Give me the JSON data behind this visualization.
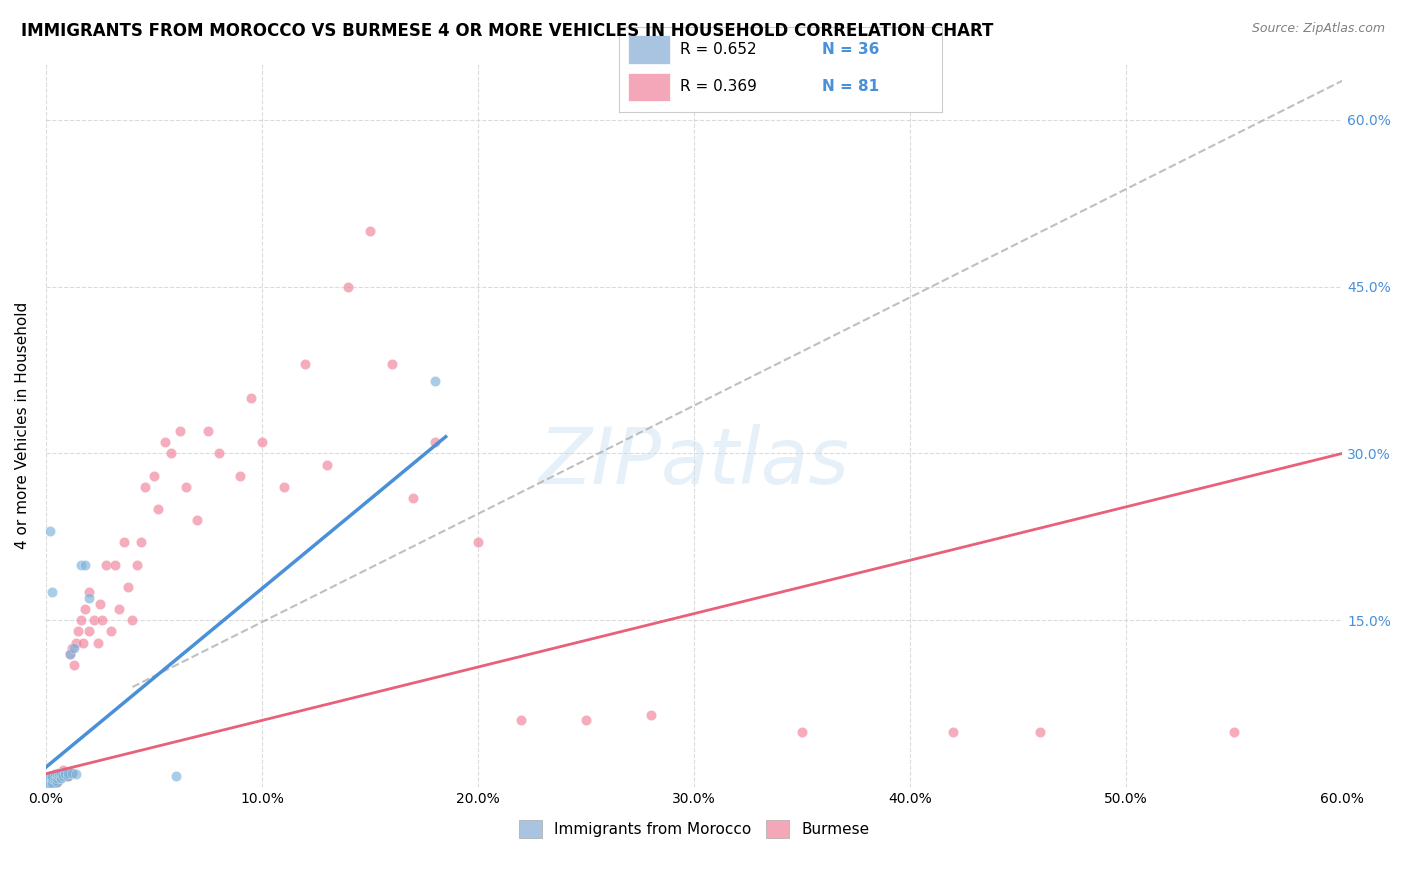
{
  "title": "IMMIGRANTS FROM MOROCCO VS BURMESE 4 OR MORE VEHICLES IN HOUSEHOLD CORRELATION CHART",
  "source": "Source: ZipAtlas.com",
  "ylabel": "4 or more Vehicles in Household",
  "xlim": [
    0.0,
    0.6
  ],
  "ylim": [
    0.0,
    0.65
  ],
  "morocco_color": "#a8c4e0",
  "burmese_color": "#f4a7b9",
  "morocco_scatter_color": "#7bb3d9",
  "burmese_scatter_color": "#f08098",
  "trendline_morocco_color": "#4a90d9",
  "trendline_burmese_color": "#e8607a",
  "diagonal_color": "#b0b0b0",
  "R_morocco": 0.652,
  "N_morocco": 36,
  "R_burmese": 0.369,
  "N_burmese": 81,
  "morocco_x": [
    0.001,
    0.001,
    0.001,
    0.001,
    0.002,
    0.002,
    0.002,
    0.002,
    0.003,
    0.003,
    0.003,
    0.003,
    0.004,
    0.004,
    0.005,
    0.005,
    0.005,
    0.006,
    0.006,
    0.007,
    0.007,
    0.008,
    0.009,
    0.01,
    0.01,
    0.011,
    0.012,
    0.013,
    0.014,
    0.016,
    0.018,
    0.02,
    0.002,
    0.003,
    0.06,
    0.18
  ],
  "morocco_y": [
    0.002,
    0.004,
    0.006,
    0.008,
    0.002,
    0.004,
    0.008,
    0.01,
    0.003,
    0.005,
    0.008,
    0.01,
    0.006,
    0.012,
    0.005,
    0.008,
    0.012,
    0.01,
    0.013,
    0.008,
    0.013,
    0.01,
    0.012,
    0.01,
    0.013,
    0.12,
    0.013,
    0.125,
    0.012,
    0.2,
    0.2,
    0.17,
    0.23,
    0.175,
    0.01,
    0.365
  ],
  "burmese_x": [
    0.001,
    0.001,
    0.001,
    0.002,
    0.002,
    0.002,
    0.002,
    0.003,
    0.003,
    0.003,
    0.003,
    0.004,
    0.004,
    0.004,
    0.005,
    0.005,
    0.005,
    0.006,
    0.006,
    0.007,
    0.007,
    0.008,
    0.008,
    0.008,
    0.009,
    0.009,
    0.01,
    0.01,
    0.011,
    0.012,
    0.012,
    0.013,
    0.014,
    0.015,
    0.016,
    0.017,
    0.018,
    0.02,
    0.02,
    0.022,
    0.024,
    0.025,
    0.026,
    0.028,
    0.03,
    0.032,
    0.034,
    0.036,
    0.038,
    0.04,
    0.042,
    0.044,
    0.046,
    0.05,
    0.052,
    0.055,
    0.058,
    0.062,
    0.065,
    0.07,
    0.075,
    0.08,
    0.09,
    0.095,
    0.1,
    0.11,
    0.12,
    0.13,
    0.14,
    0.15,
    0.16,
    0.17,
    0.18,
    0.2,
    0.22,
    0.25,
    0.28,
    0.35,
    0.42,
    0.46,
    0.55
  ],
  "burmese_y": [
    0.002,
    0.005,
    0.008,
    0.003,
    0.005,
    0.008,
    0.01,
    0.002,
    0.005,
    0.008,
    0.01,
    0.005,
    0.008,
    0.012,
    0.005,
    0.008,
    0.012,
    0.008,
    0.012,
    0.008,
    0.012,
    0.01,
    0.013,
    0.015,
    0.01,
    0.013,
    0.01,
    0.013,
    0.12,
    0.013,
    0.125,
    0.11,
    0.13,
    0.14,
    0.15,
    0.13,
    0.16,
    0.14,
    0.175,
    0.15,
    0.13,
    0.165,
    0.15,
    0.2,
    0.14,
    0.2,
    0.16,
    0.22,
    0.18,
    0.15,
    0.2,
    0.22,
    0.27,
    0.28,
    0.25,
    0.31,
    0.3,
    0.32,
    0.27,
    0.24,
    0.32,
    0.3,
    0.28,
    0.35,
    0.31,
    0.27,
    0.38,
    0.29,
    0.45,
    0.5,
    0.38,
    0.26,
    0.31,
    0.22,
    0.06,
    0.06,
    0.065,
    0.05,
    0.05,
    0.05,
    0.05
  ],
  "watermark": "ZIPatlas",
  "background_color": "#ffffff",
  "grid_color": "#cccccc",
  "title_fontsize": 12,
  "axis_label_fontsize": 11,
  "tick_fontsize": 10
}
